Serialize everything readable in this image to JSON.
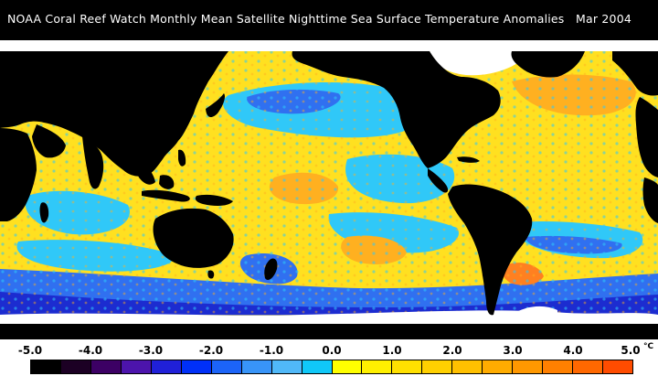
{
  "header": {
    "title": "NOAA Coral Reef Watch Monthly Mean Satellite Nighttime Sea Surface Temperature Anomalies",
    "date": "Mar 2004"
  },
  "map": {
    "ocean_colors": {
      "yellow": "#ffe020",
      "light_blue": "#30c8f8",
      "mid_blue": "#3070f0",
      "deep_blue": "#1c2cd0",
      "orange": "#ffb020",
      "land": "#000000",
      "ice": "#ffffff"
    }
  },
  "legend": {
    "ticks": [
      "-5.0",
      "-4.0",
      "-3.0",
      "-2.0",
      "-1.0",
      "0.0",
      "1.0",
      "2.0",
      "3.0",
      "4.0",
      "5.0"
    ],
    "unit": "°C",
    "colors": [
      "#000000",
      "#1c0024",
      "#3c0064",
      "#4c14ac",
      "#2020d8",
      "#0030f8",
      "#1c64f8",
      "#3894f8",
      "#50b8f8",
      "#10c8f8",
      "#ffff00",
      "#fff000",
      "#ffe000",
      "#ffd000",
      "#ffc000",
      "#ffac00",
      "#ff9800",
      "#ff8000",
      "#ff6800",
      "#ff4c00"
    ]
  }
}
